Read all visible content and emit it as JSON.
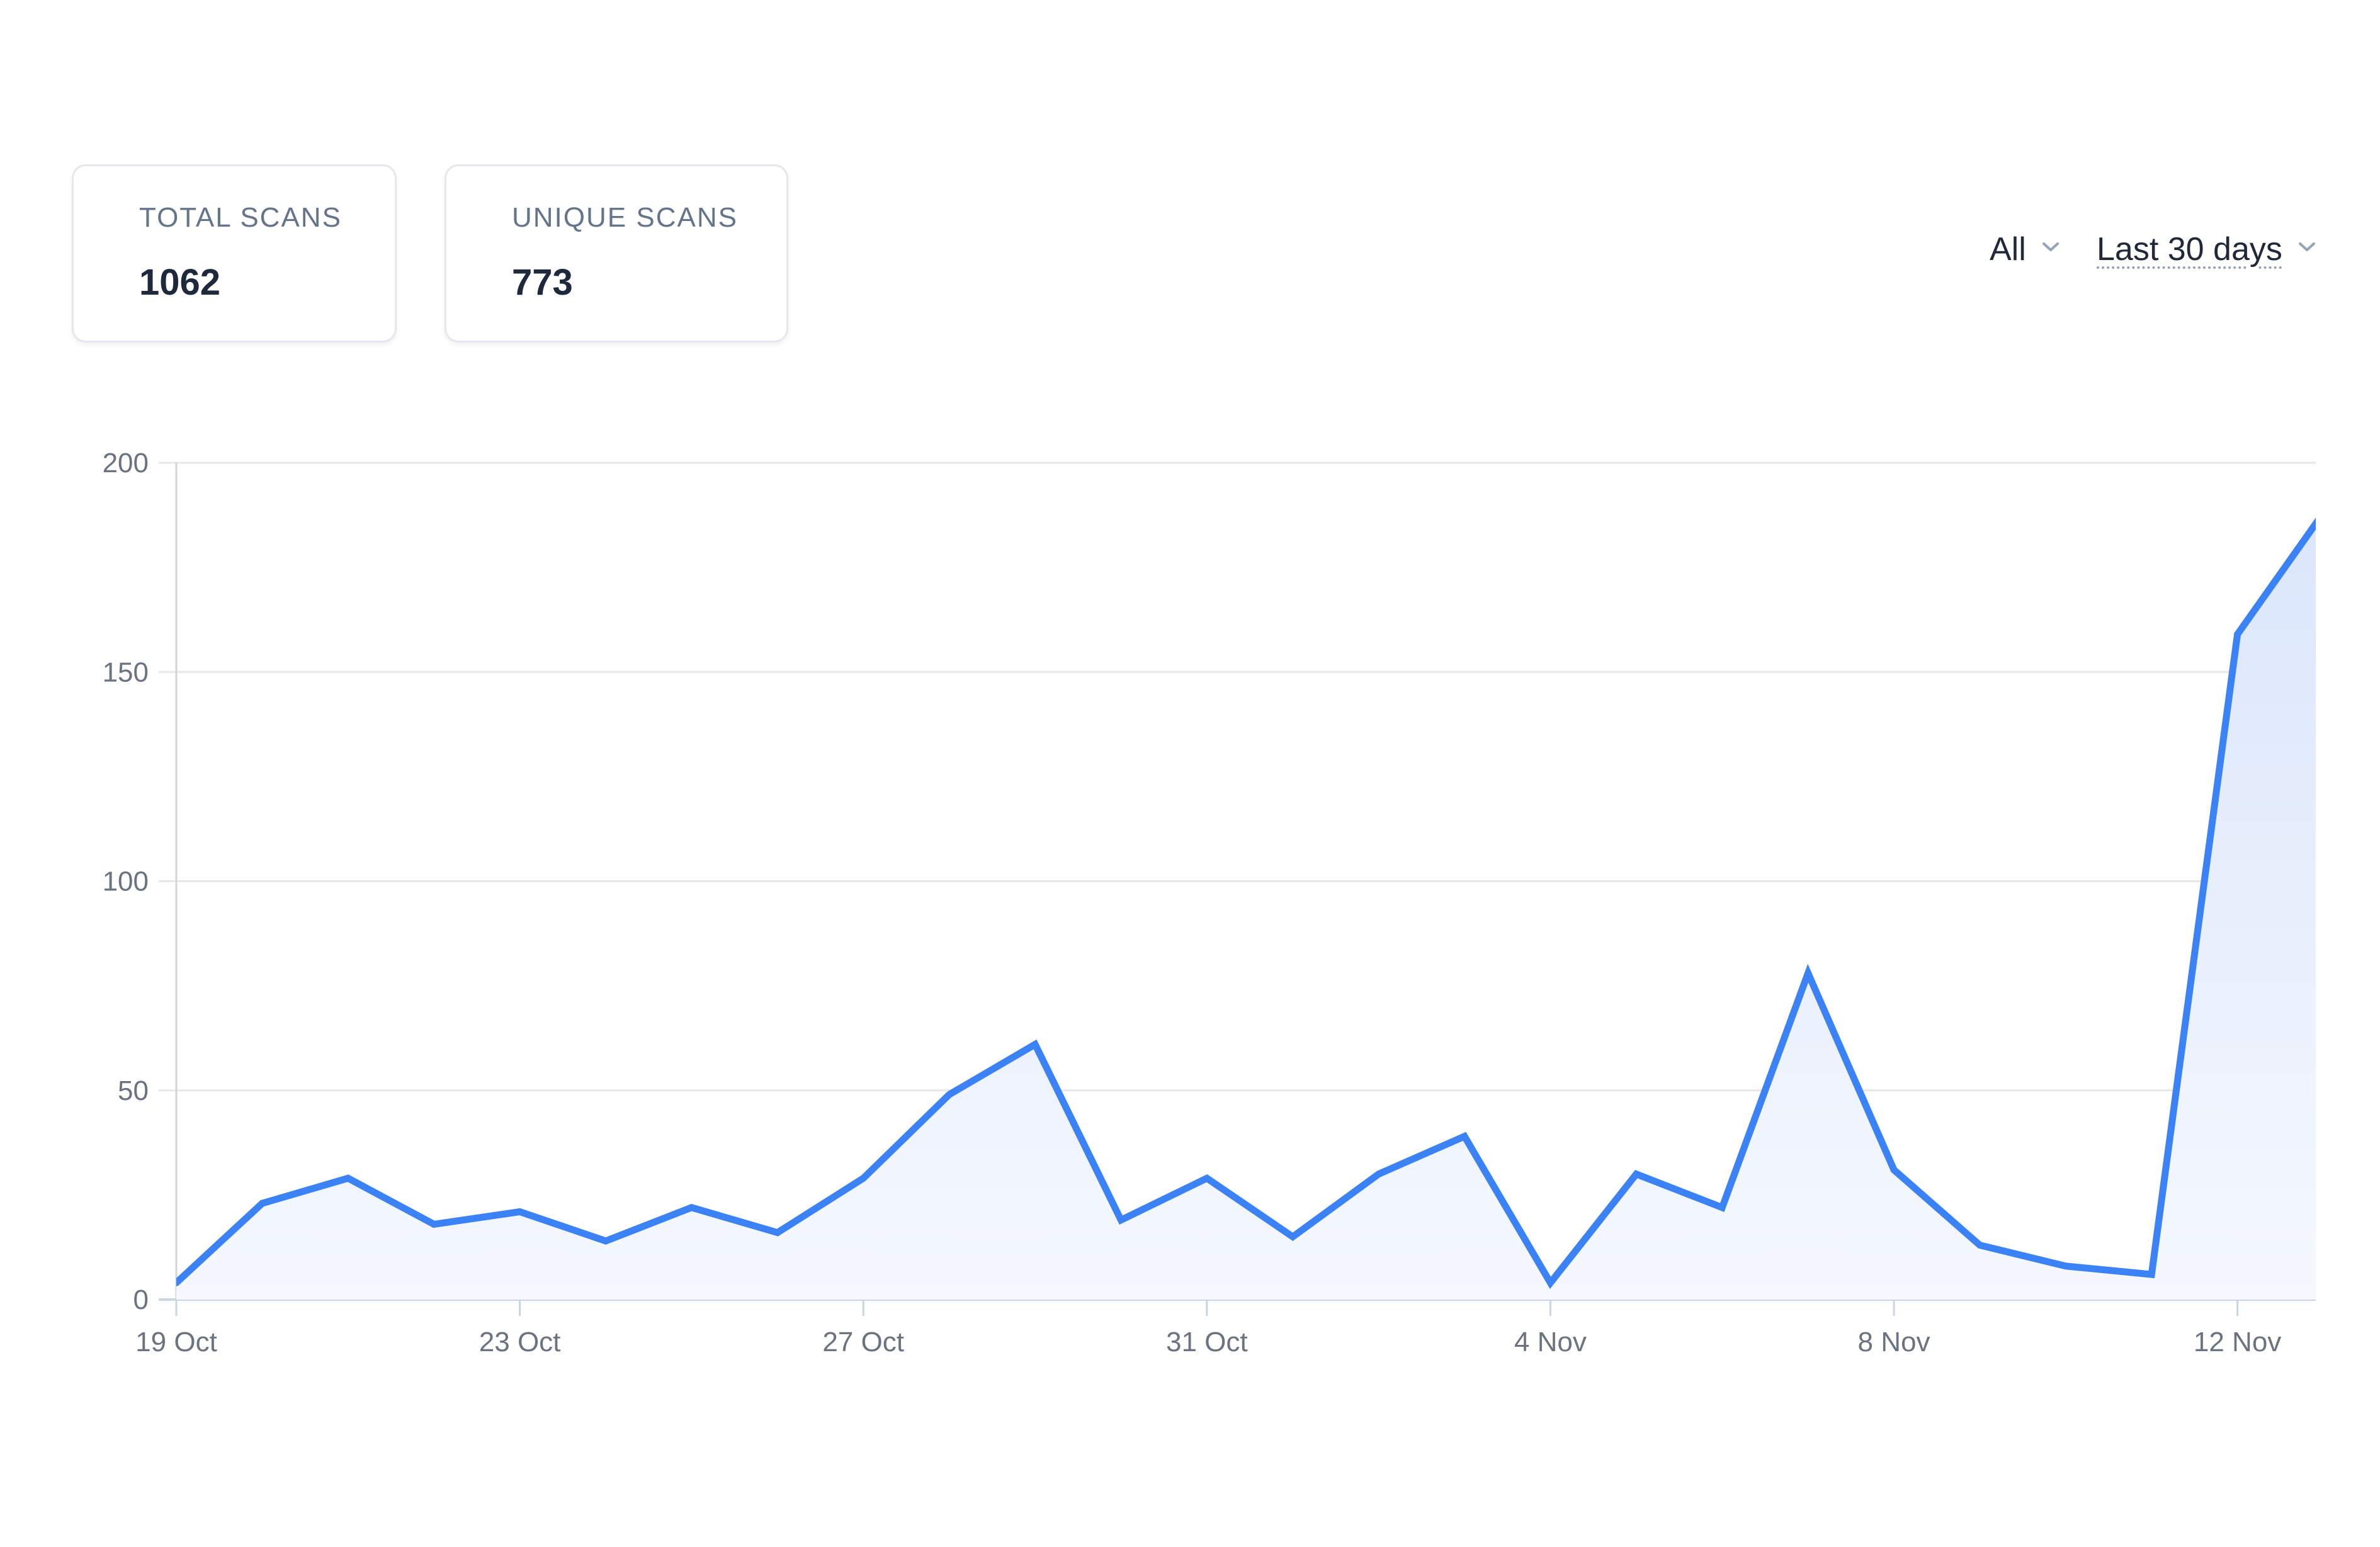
{
  "stats": {
    "total": {
      "label": "TOTAL SCANS",
      "value": "1062"
    },
    "unique": {
      "label": "UNIQUE SCANS",
      "value": "773"
    }
  },
  "filters": {
    "type": {
      "selected": "All",
      "icon": "chevron-down-icon"
    },
    "range": {
      "selected": "Last 30 days",
      "icon": "chevron-down-icon"
    }
  },
  "colors": {
    "line": "#3b82f6",
    "fill": "#dbe6fb",
    "grid": "#e5e7eb",
    "tick_text": "#6b7280"
  },
  "chart_data": {
    "type": "area",
    "title": "",
    "xlabel": "",
    "ylabel": "",
    "x": [
      "19 Oct",
      "20 Oct",
      "21 Oct",
      "22 Oct",
      "23 Oct",
      "24 Oct",
      "25 Oct",
      "26 Oct",
      "27 Oct",
      "28 Oct",
      "29 Oct",
      "30 Oct",
      "31 Oct",
      "1 Nov",
      "2 Nov",
      "3 Nov",
      "4 Nov",
      "5 Nov",
      "6 Nov",
      "7 Nov",
      "8 Nov",
      "9 Nov",
      "10 Nov",
      "11 Nov",
      "12 Nov",
      "13 Nov"
    ],
    "values": [
      4,
      23,
      29,
      18,
      21,
      14,
      22,
      16,
      29,
      49,
      61,
      19,
      29,
      15,
      30,
      39,
      4,
      30,
      22,
      78,
      31,
      13,
      8,
      6,
      159,
      188
    ],
    "x_tick_labels": [
      "19 Oct",
      "23 Oct",
      "27 Oct",
      "31 Oct",
      "4 Nov",
      "8 Nov",
      "12 Nov"
    ],
    "y_ticks": [
      0,
      50,
      100,
      150,
      200
    ],
    "ylim": [
      0,
      200
    ],
    "grid": true,
    "legend": "none"
  }
}
